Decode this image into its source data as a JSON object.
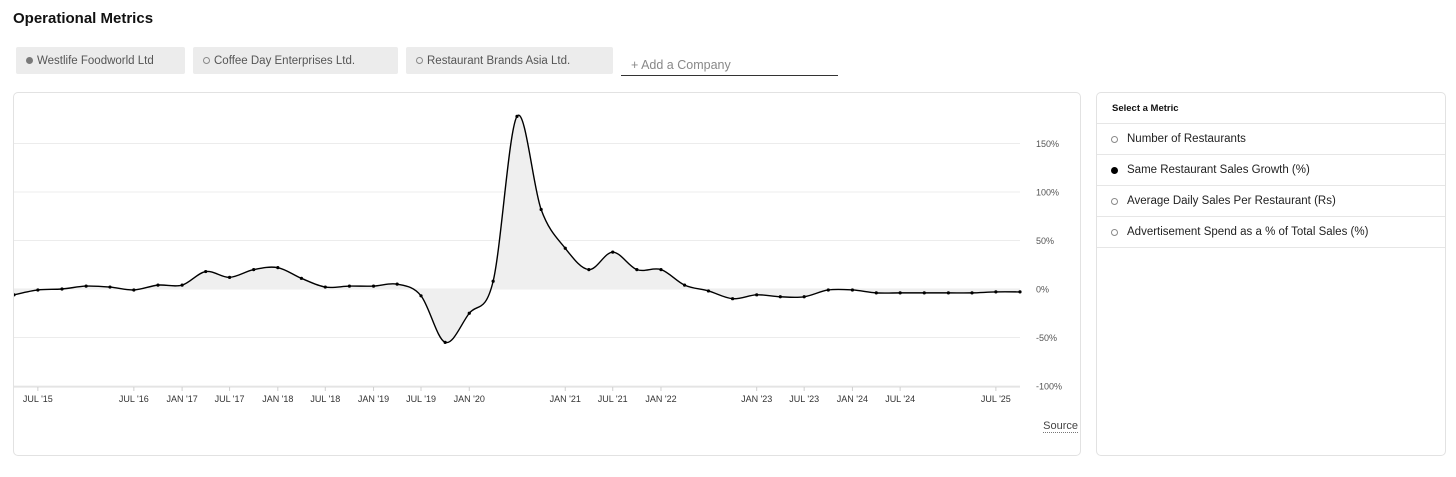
{
  "page": {
    "title": "Operational Metrics"
  },
  "companies": [
    {
      "name": "Westlife Foodworld Ltd",
      "active": true
    },
    {
      "name": "Coffee Day Enterprises Ltd.",
      "active": false
    },
    {
      "name": "Restaurant Brands Asia Ltd.",
      "active": false
    }
  ],
  "add_company": {
    "placeholder": "+ Add a Company"
  },
  "metrics": {
    "heading": "Select a Metric",
    "items": [
      {
        "label": "Number of Restaurants",
        "selected": false
      },
      {
        "label": "Same Restaurant Sales Growth (%)",
        "selected": true
      },
      {
        "label": "Average Daily Sales Per Restaurant (Rs)",
        "selected": false
      },
      {
        "label": "Advertisement Spend as a % of Total Sales (%)",
        "selected": false
      }
    ]
  },
  "source_label": "Source",
  "colors": {
    "line": "#000000",
    "area": "#efefef",
    "grid": "#ececec"
  },
  "chart_data": {
    "type": "area",
    "series": [
      {
        "x": [
          "2015-04",
          "2015-07",
          "2015-10",
          "2016-01",
          "2016-04",
          "2016-07",
          "2016-10",
          "2017-01",
          "2017-04",
          "2017-07",
          "2017-10",
          "2018-01",
          "2018-04",
          "2018-07",
          "2018-10",
          "2019-01",
          "2019-04",
          "2019-07",
          "2019-10",
          "2020-01",
          "2020-04",
          "2020-07",
          "2020-10",
          "2021-01",
          "2021-04",
          "2021-07",
          "2021-10",
          "2022-01",
          "2022-04",
          "2022-07",
          "2022-10",
          "2023-01",
          "2023-04",
          "2023-07",
          "2023-10",
          "2024-01",
          "2024-04",
          "2024-07",
          "2024-10",
          "2025-01",
          "2025-04",
          "2025-07",
          "2025-10"
        ],
        "values": [
          -6,
          -1,
          0,
          3,
          2,
          -1,
          4,
          4,
          18,
          12,
          20,
          22,
          11,
          2,
          3,
          3,
          5,
          -7,
          -55,
          -25,
          8,
          178,
          82,
          42,
          20,
          38,
          20,
          20,
          4,
          -2,
          -10,
          -6,
          -8,
          -8,
          -1,
          -1,
          -4,
          -4,
          -4,
          -4,
          -4,
          -3,
          -3
        ]
      }
    ],
    "x_ticks": [
      "JUL '15",
      "JUL '16",
      "JAN '17",
      "JUL '17",
      "JAN '18",
      "JUL '18",
      "JAN '19",
      "JUL '19",
      "JAN '20",
      "JAN '21",
      "JUL '21",
      "JAN '22",
      "JAN '23",
      "JUL '23",
      "JAN '24",
      "JUL '24",
      "JUL '25"
    ],
    "y_ticks": [
      "150%",
      "100%",
      "50%",
      "0%",
      "-50%",
      "-100%"
    ],
    "y_tick_values": [
      150,
      100,
      50,
      0,
      -50,
      -100
    ],
    "ylim": [
      -100,
      180
    ],
    "grid": true,
    "xlabel": "",
    "ylabel": "",
    "title": ""
  }
}
